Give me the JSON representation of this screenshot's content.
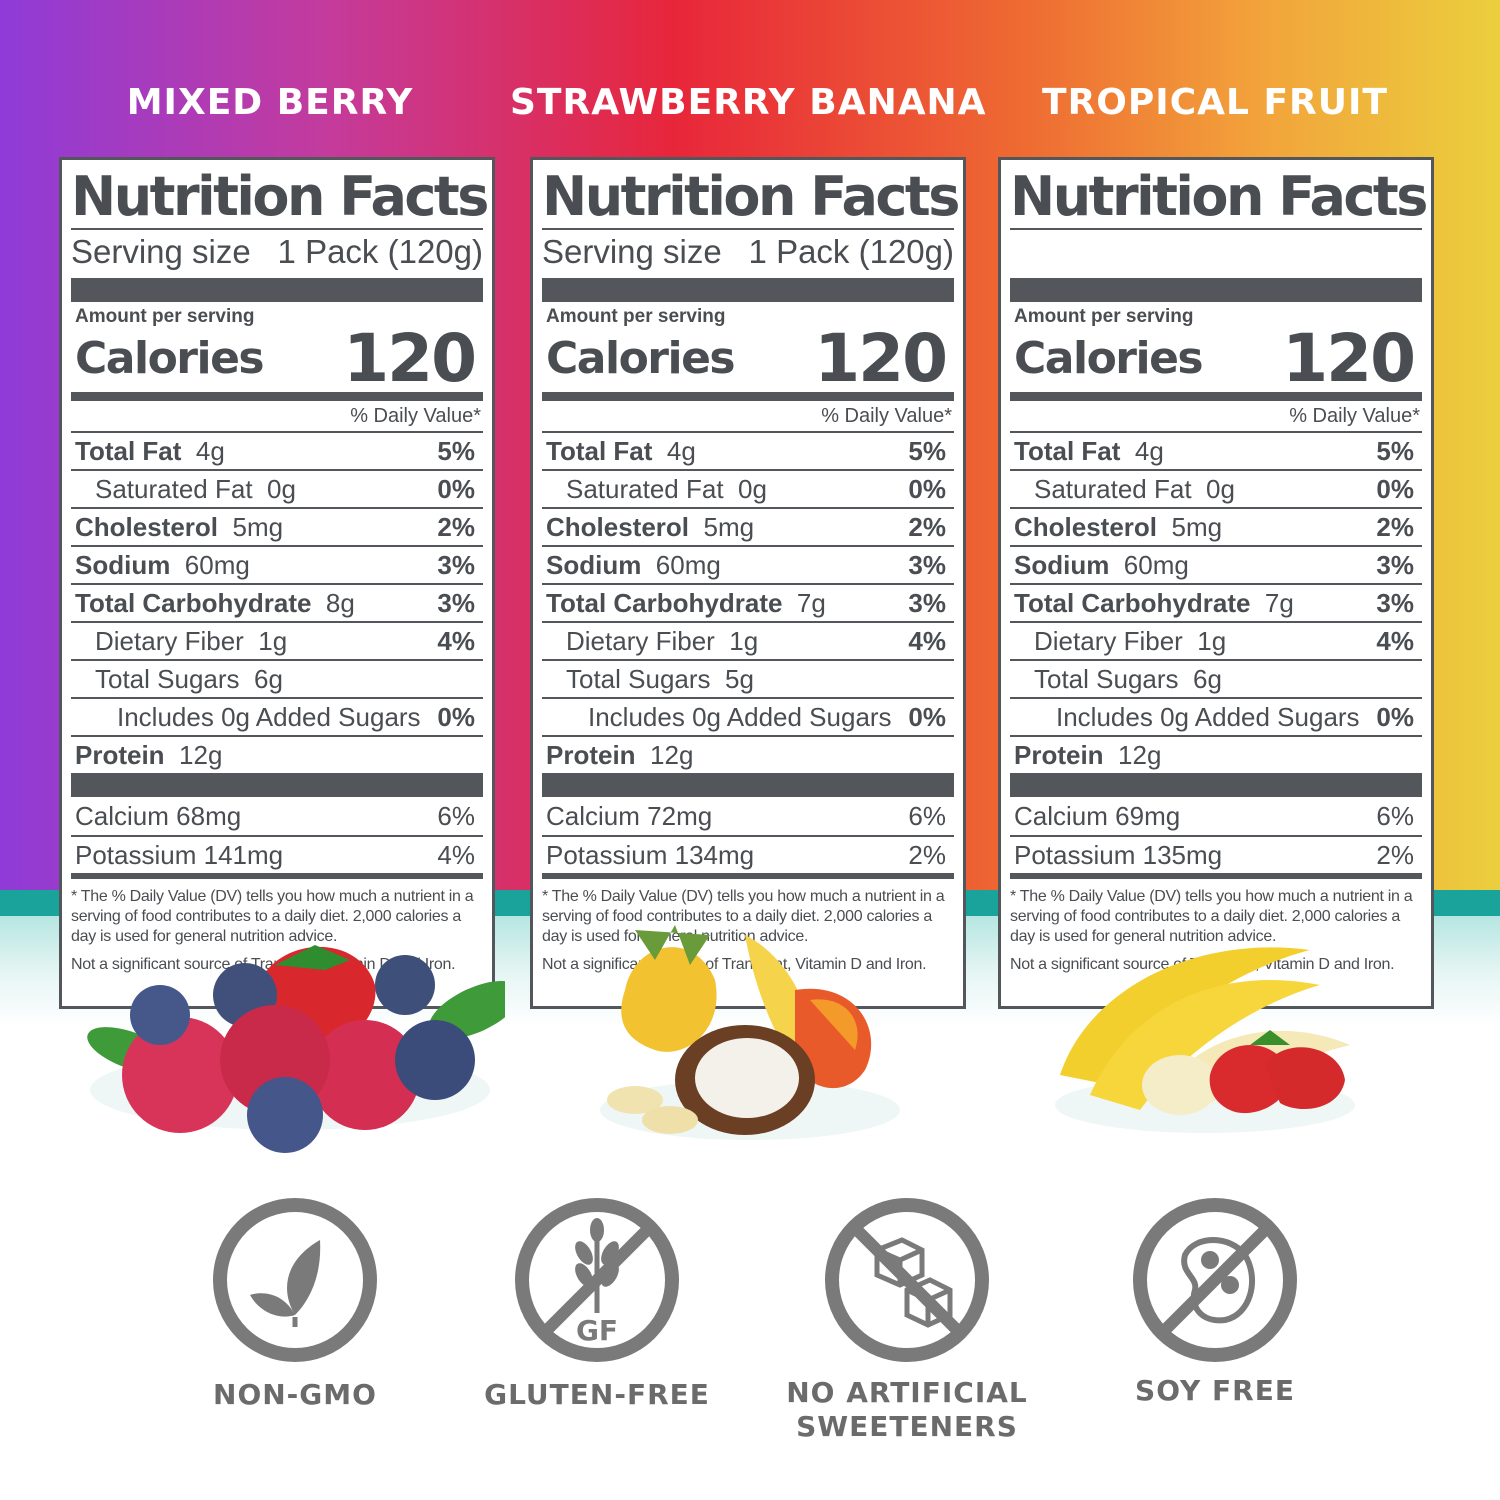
{
  "panels": [
    {
      "flavor": "MIXED BERRY",
      "title": "Nutrition Facts",
      "serving_label": "Serving size",
      "serving_value": "1 Pack (120g)",
      "amount_label": "Amount per serving",
      "calories_label": "Calories",
      "calories_value": "120",
      "dv_header": "% Daily Value*",
      "rows": [
        {
          "name": "Total Fat",
          "amount": "4g",
          "dv": "5%"
        },
        {
          "name": "Saturated Fat",
          "amount": "0g",
          "dv": "0%"
        },
        {
          "name": "Cholesterol",
          "amount": "5mg",
          "dv": "2%"
        },
        {
          "name": "Sodium",
          "amount": "60mg",
          "dv": "3%"
        },
        {
          "name": "Total Carbohydrate",
          "amount": "8g",
          "dv": "3%"
        },
        {
          "name": "Dietary Fiber",
          "amount": "1g",
          "dv": "4%"
        },
        {
          "name": "Total Sugars",
          "amount": "6g",
          "dv": ""
        },
        {
          "name": "Includes 0g Added Sugars",
          "amount": "",
          "dv": "0%"
        },
        {
          "name": "Protein",
          "amount": "12g",
          "dv": ""
        }
      ],
      "minerals": [
        {
          "name": "Calcium",
          "amount": "68mg",
          "dv": "6%"
        },
        {
          "name": "Potassium",
          "amount": "141mg",
          "dv": "4%"
        }
      ],
      "footnote": "* The % Daily Value (DV) tells you how much a nutrient in a serving of food contributes to a daily diet. 2,000 calories a day is used for general nutrition advice.",
      "footnote2": "Not a significant source of Trans Fat, Vitamin D and Iron."
    },
    {
      "flavor": "STRAWBERRY BANANA",
      "title": "Nutrition Facts",
      "serving_label": "Serving size",
      "serving_value": "1 Pack (120g)",
      "amount_label": "Amount per serving",
      "calories_label": "Calories",
      "calories_value": "120",
      "dv_header": "% Daily Value*",
      "rows": [
        {
          "name": "Total Fat",
          "amount": "4g",
          "dv": "5%"
        },
        {
          "name": "Saturated Fat",
          "amount": "0g",
          "dv": "0%"
        },
        {
          "name": "Cholesterol",
          "amount": "5mg",
          "dv": "2%"
        },
        {
          "name": "Sodium",
          "amount": "60mg",
          "dv": "3%"
        },
        {
          "name": "Total Carbohydrate",
          "amount": "7g",
          "dv": "3%"
        },
        {
          "name": "Dietary Fiber",
          "amount": "1g",
          "dv": "4%"
        },
        {
          "name": "Total Sugars",
          "amount": "5g",
          "dv": ""
        },
        {
          "name": "Includes 0g Added Sugars",
          "amount": "",
          "dv": "0%"
        },
        {
          "name": "Protein",
          "amount": "12g",
          "dv": ""
        }
      ],
      "minerals": [
        {
          "name": "Calcium",
          "amount": "72mg",
          "dv": "6%"
        },
        {
          "name": "Potassium",
          "amount": "134mg",
          "dv": "2%"
        }
      ],
      "footnote": "* The % Daily Value (DV) tells you how much a nutrient in a serving of food contributes to a daily diet. 2,000 calories a day is used for general nutrition advice.",
      "footnote2": "Not a significant source of Trans Fat, Vitamin D and Iron."
    },
    {
      "flavor": "TROPICAL FRUIT",
      "title": "Nutrition Facts",
      "serving_label": "",
      "serving_value": "",
      "amount_label": "Amount per serving",
      "calories_label": "Calories",
      "calories_value": "120",
      "dv_header": "% Daily Value*",
      "rows": [
        {
          "name": "Total Fat",
          "amount": "4g",
          "dv": "5%"
        },
        {
          "name": "Saturated Fat",
          "amount": "0g",
          "dv": "0%"
        },
        {
          "name": "Cholesterol",
          "amount": "5mg",
          "dv": "2%"
        },
        {
          "name": "Sodium",
          "amount": "60mg",
          "dv": "3%"
        },
        {
          "name": "Total Carbohydrate",
          "amount": "7g",
          "dv": "3%"
        },
        {
          "name": "Dietary Fiber",
          "amount": "1g",
          "dv": "4%"
        },
        {
          "name": "Total Sugars",
          "amount": "6g",
          "dv": ""
        },
        {
          "name": "Includes 0g Added Sugars",
          "amount": "",
          "dv": "0%"
        },
        {
          "name": "Protein",
          "amount": "12g",
          "dv": ""
        }
      ],
      "minerals": [
        {
          "name": "Calcium",
          "amount": "69mg",
          "dv": "6%"
        },
        {
          "name": "Potassium",
          "amount": "135mg",
          "dv": "2%"
        }
      ],
      "footnote": "* The % Daily Value (DV) tells you how much a nutrient in a serving of food contributes to a daily diet. 2,000 calories a day is used for general nutrition advice.",
      "footnote2": "Not a significant source of Trans Fat, Vitamin D and Iron."
    }
  ],
  "badges": [
    {
      "label": "NON-GMO",
      "icon": "leaf-icon"
    },
    {
      "label": "GLUTEN-FREE",
      "icon": "wheat-icon",
      "icon_text": "GF"
    },
    {
      "label_line1": "NO ARTIFICIAL",
      "label_line2": "SWEETENERS",
      "icon": "sugar-cubes-icon"
    },
    {
      "label": "SOY FREE",
      "icon": "soybean-icon"
    }
  ],
  "colors": {
    "label_text": "#4a4d51",
    "badge_gray": "#7a7a7a",
    "teal": "#1aa39b"
  }
}
